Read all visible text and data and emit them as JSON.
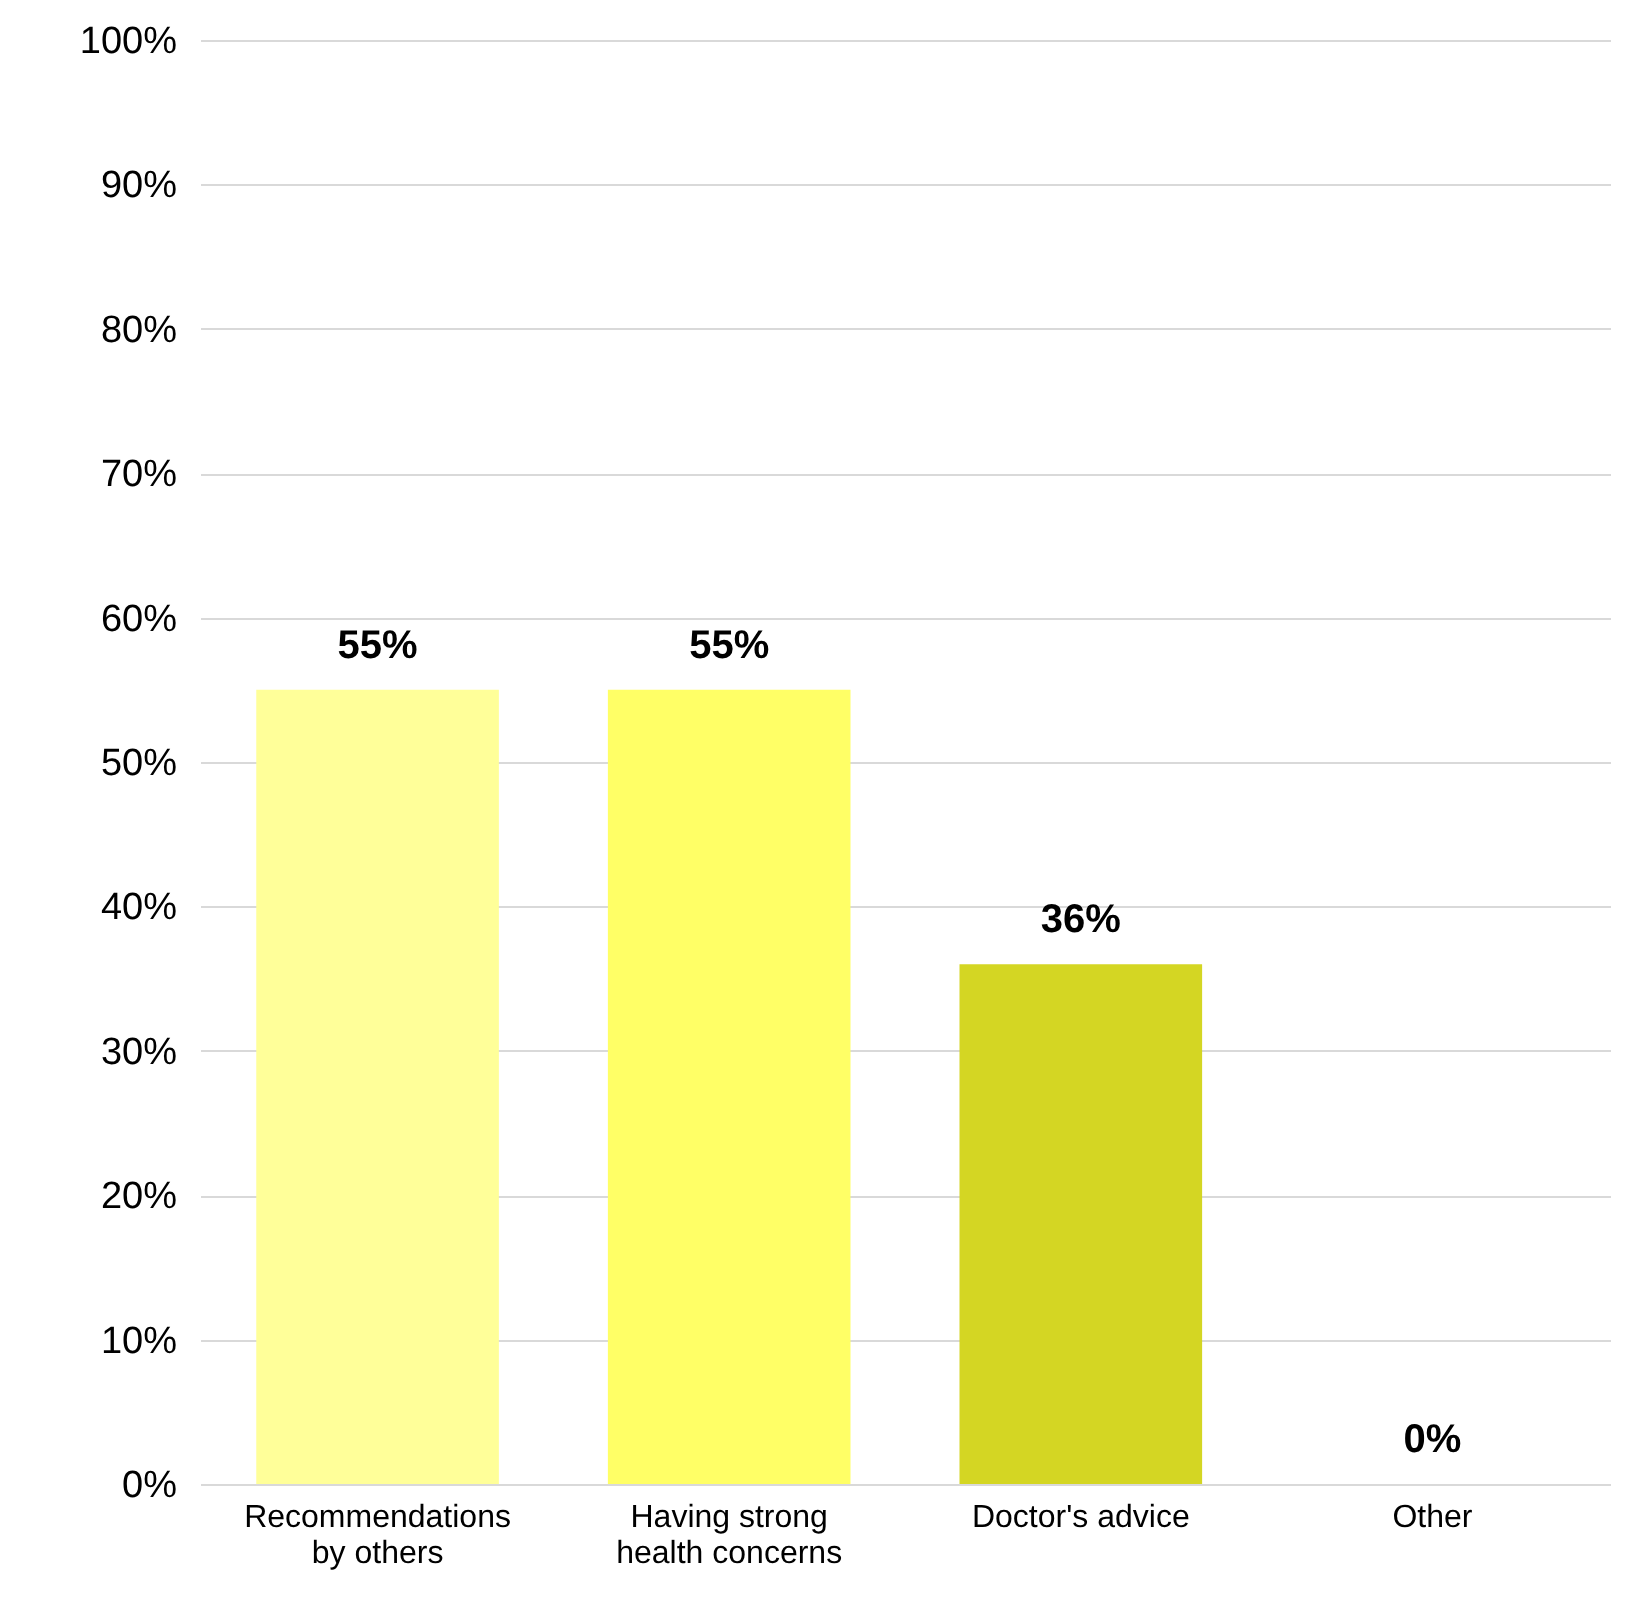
{
  "chart_data": {
    "type": "bar",
    "categories": [
      "Recommendations by others",
      "Having strong health concerns",
      "Doctor's advice",
      "Other"
    ],
    "values": [
      55,
      55,
      36,
      0
    ],
    "colors": [
      "#ffff99",
      "#ffff66",
      "#d4d623",
      "#c0c000"
    ],
    "value_labels": [
      "55%",
      "55%",
      "36%",
      "0%"
    ],
    "ylim": [
      0,
      100
    ],
    "yticks": [
      {
        "value": 0,
        "label": "0%"
      },
      {
        "value": 10,
        "label": "10%"
      },
      {
        "value": 20,
        "label": "20%"
      },
      {
        "value": 30,
        "label": "30%"
      },
      {
        "value": 40,
        "label": "40%"
      },
      {
        "value": 50,
        "label": "50%"
      },
      {
        "value": 60,
        "label": "60%"
      },
      {
        "value": 70,
        "label": "70%"
      },
      {
        "value": 80,
        "label": "80%"
      },
      {
        "value": 90,
        "label": "90%"
      },
      {
        "value": 100,
        "label": "100%"
      }
    ],
    "grid": "y"
  }
}
